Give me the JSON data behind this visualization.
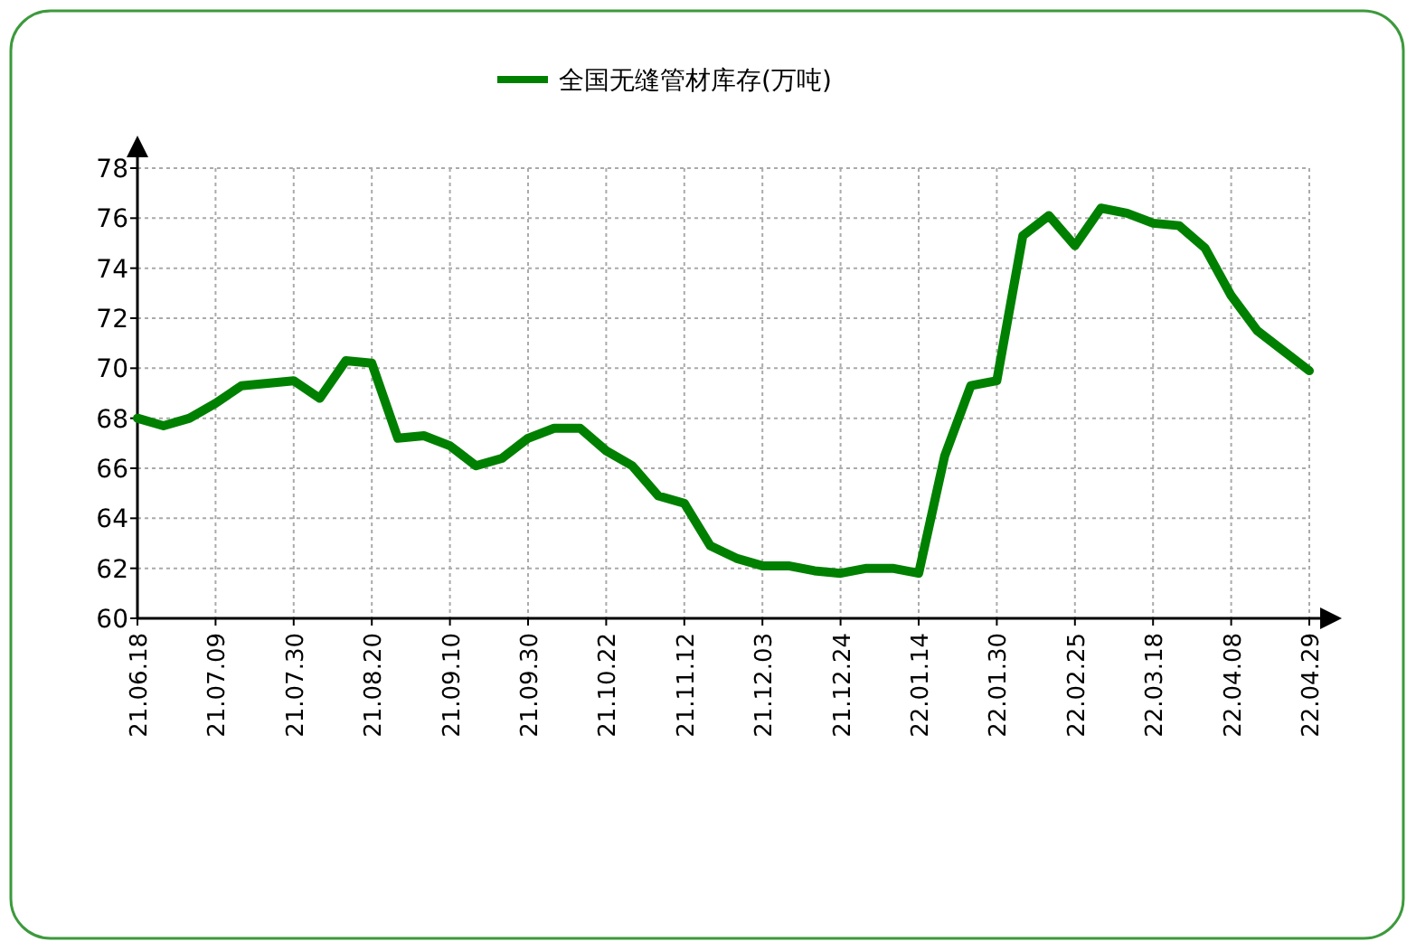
{
  "chart_data": {
    "type": "line",
    "categories": [
      "21.06.18",
      null,
      null,
      "21.07.09",
      null,
      null,
      "21.07.30",
      null,
      null,
      "21.08.20",
      null,
      null,
      "21.09.10",
      null,
      null,
      "21.09.30",
      null,
      null,
      "21.10.22",
      null,
      null,
      "21.11.12",
      null,
      null,
      "21.12.03",
      null,
      null,
      "21.12.24",
      null,
      null,
      "22.01.14",
      null,
      null,
      "22.01.30",
      null,
      null,
      "22.02.25",
      null,
      null,
      "22.03.18",
      null,
      null,
      "22.04.08",
      null,
      null,
      "22.04.29"
    ],
    "series": [
      {
        "name": "全国无缝管材库存(万吨)",
        "color": "#008000",
        "values": [
          68.0,
          67.7,
          68.0,
          68.6,
          69.3,
          69.4,
          69.5,
          68.8,
          70.3,
          70.2,
          67.2,
          67.3,
          66.9,
          66.1,
          66.4,
          67.2,
          67.6,
          67.6,
          66.7,
          66.1,
          64.9,
          64.6,
          62.9,
          62.4,
          62.1,
          62.1,
          61.9,
          61.8,
          62.0,
          62.0,
          61.8,
          66.5,
          69.3,
          69.5,
          75.3,
          76.1,
          74.9,
          76.4,
          76.2,
          75.8,
          75.7,
          74.8,
          72.9,
          71.5,
          70.7,
          69.9
        ]
      }
    ],
    "ylim": [
      60,
      78
    ],
    "yticks": [
      60,
      62,
      64,
      66,
      68,
      70,
      72,
      74,
      76,
      78
    ],
    "grid": true,
    "legend": "top",
    "marker": "none",
    "line_style": "solid"
  }
}
